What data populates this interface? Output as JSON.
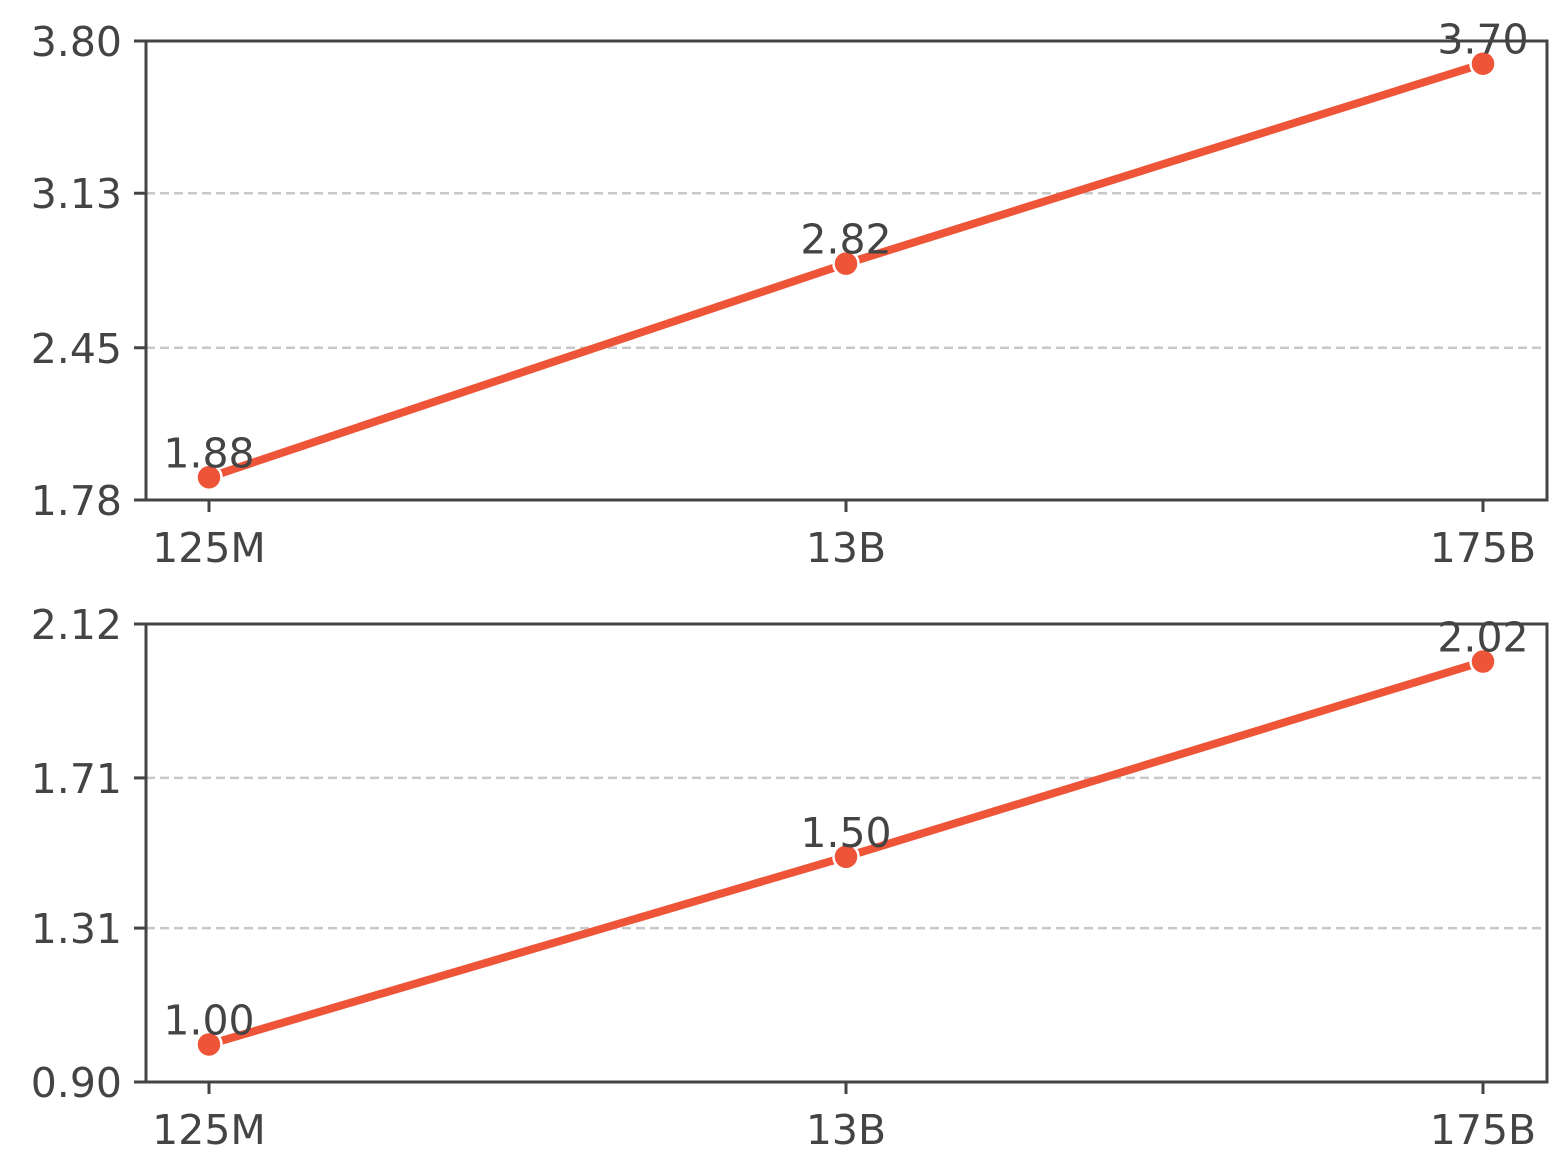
{
  "colors": {
    "line": "#EE5538",
    "axes": "#444444",
    "grid": "#c8c8c8",
    "text": "#444444"
  },
  "chart_data": [
    {
      "type": "line",
      "categories": [
        "125M",
        "13B",
        "175B"
      ],
      "series": [
        {
          "values": [
            1.88,
            2.82,
            3.7
          ]
        }
      ],
      "data_labels": [
        "1.88",
        "2.82",
        "3.70"
      ],
      "ylim": [
        1.78,
        3.8
      ],
      "yticks": [
        1.78,
        2.45,
        3.13,
        3.8
      ],
      "ytick_labels": [
        "1.78",
        "2.45",
        "3.13",
        "3.80"
      ],
      "grid": "horizontal dashed",
      "title": "",
      "xlabel": "",
      "ylabel": ""
    },
    {
      "type": "line",
      "categories": [
        "125M",
        "13B",
        "175B"
      ],
      "series": [
        {
          "values": [
            1.0,
            1.5,
            2.02
          ]
        }
      ],
      "data_labels": [
        "1.00",
        "1.50",
        "2.02"
      ],
      "ylim": [
        0.9,
        2.12
      ],
      "yticks": [
        0.9,
        1.31,
        1.71,
        2.12
      ],
      "ytick_labels": [
        "0.90",
        "1.31",
        "1.71",
        "2.12"
      ],
      "grid": "horizontal dashed",
      "title": "",
      "xlabel": "",
      "ylabel": ""
    }
  ]
}
